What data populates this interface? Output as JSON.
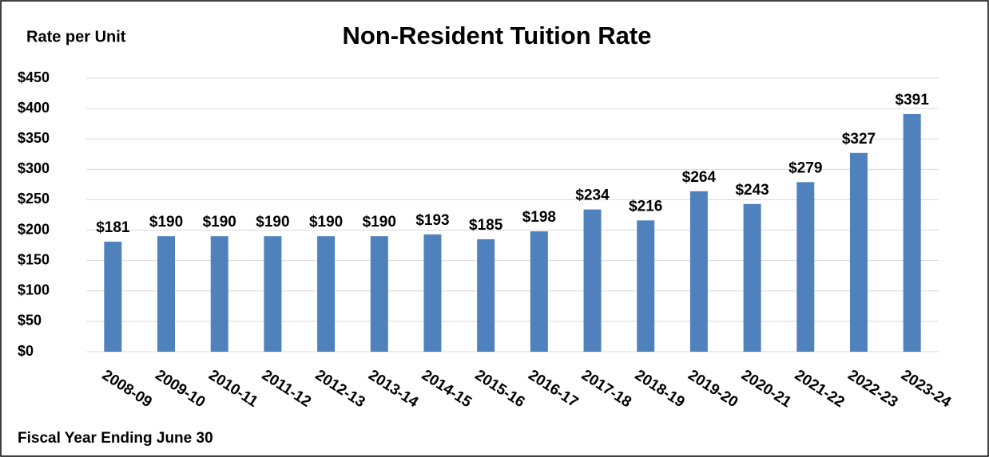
{
  "chart_data": {
    "type": "bar",
    "title": "Non-Resident Tuition Rate",
    "y_label": "Rate per Unit",
    "x_label": "Fiscal Year Ending June 30",
    "categories": [
      "2008-09",
      "2009-10",
      "2010-11",
      "2011-12",
      "2012-13",
      "2013-14",
      "2014-15",
      "2015-16",
      "2016-17",
      "2017-18",
      "2018-19",
      "2019-20",
      "2020-21",
      "2021-22",
      "2022-23",
      "2023-24"
    ],
    "values": [
      181,
      190,
      190,
      190,
      190,
      190,
      193,
      185,
      198,
      234,
      216,
      264,
      243,
      279,
      327,
      391
    ],
    "value_labels": [
      "$181",
      "$190",
      "$190",
      "$190",
      "$190",
      "$190",
      "$193",
      "$185",
      "$198",
      "$234",
      "$216",
      "$264",
      "$243",
      "$279",
      "$327",
      "$391"
    ],
    "color": "#4f81bd",
    "ylim": [
      0,
      450
    ],
    "yticks": [
      {
        "value": 0,
        "label": "$0"
      },
      {
        "value": 50,
        "label": "$50"
      },
      {
        "value": 100,
        "label": "$100"
      },
      {
        "value": 150,
        "label": "$150"
      },
      {
        "value": 200,
        "label": "$200"
      },
      {
        "value": 250,
        "label": "$250"
      },
      {
        "value": 300,
        "label": "$300"
      },
      {
        "value": 350,
        "label": "$350"
      },
      {
        "value": 400,
        "label": "$400"
      },
      {
        "value": 450,
        "label": "$450"
      }
    ],
    "grid": true
  }
}
